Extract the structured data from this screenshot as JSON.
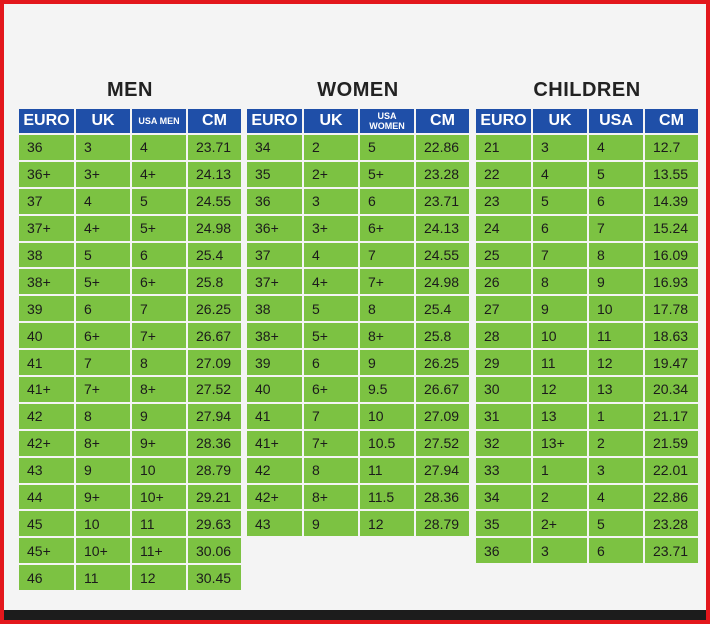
{
  "men": {
    "title": "MEN",
    "headers": [
      "EURO",
      "UK",
      "USA MEN",
      "CM"
    ],
    "rows": [
      [
        "36",
        "3",
        "4",
        "23.71"
      ],
      [
        "36+",
        "3+",
        "4+",
        "24.13"
      ],
      [
        "37",
        "4",
        "5",
        "24.55"
      ],
      [
        "37+",
        "4+",
        "5+",
        "24.98"
      ],
      [
        "38",
        "5",
        "6",
        "25.4"
      ],
      [
        "38+",
        "5+",
        "6+",
        "25.8"
      ],
      [
        "39",
        "6",
        "7",
        "26.25"
      ],
      [
        "40",
        "6+",
        "7+",
        "26.67"
      ],
      [
        "41",
        "7",
        "8",
        "27.09"
      ],
      [
        "41+",
        "7+",
        "8+",
        "27.52"
      ],
      [
        "42",
        "8",
        "9",
        "27.94"
      ],
      [
        "42+",
        "8+",
        "9+",
        "28.36"
      ],
      [
        "43",
        "9",
        "10",
        "28.79"
      ],
      [
        "44",
        "9+",
        "10+",
        "29.21"
      ],
      [
        "45",
        "10",
        "11",
        "29.63"
      ],
      [
        "45+",
        "10+",
        "11+",
        "30.06"
      ],
      [
        "46",
        "11",
        "12",
        "30.45"
      ]
    ]
  },
  "women": {
    "title": "WOMEN",
    "headers": [
      "EURO",
      "UK",
      "USA WOMEN",
      "CM"
    ],
    "rows": [
      [
        "34",
        "2",
        "5",
        "22.86"
      ],
      [
        "35",
        "2+",
        "5+",
        "23.28"
      ],
      [
        "36",
        "3",
        "6",
        "23.71"
      ],
      [
        "36+",
        "3+",
        "6+",
        "24.13"
      ],
      [
        "37",
        "4",
        "7",
        "24.55"
      ],
      [
        "37+",
        "4+",
        "7+",
        "24.98"
      ],
      [
        "38",
        "5",
        "8",
        "25.4"
      ],
      [
        "38+",
        "5+",
        "8+",
        "25.8"
      ],
      [
        "39",
        "6",
        "9",
        "26.25"
      ],
      [
        "40",
        "6+",
        "9.5",
        "26.67"
      ],
      [
        "41",
        "7",
        "10",
        "27.09"
      ],
      [
        "41+",
        "7+",
        "10.5",
        "27.52"
      ],
      [
        "42",
        "8",
        "11",
        "27.94"
      ],
      [
        "42+",
        "8+",
        "11.5",
        "28.36"
      ],
      [
        "43",
        "9",
        "12",
        "28.79"
      ]
    ]
  },
  "children": {
    "title": "CHILDREN",
    "headers": [
      "EURO",
      "UK",
      "USA",
      "CM"
    ],
    "rows": [
      [
        "21",
        "3",
        "4",
        "12.7"
      ],
      [
        "22",
        "4",
        "5",
        "13.55"
      ],
      [
        "23",
        "5",
        "6",
        "14.39"
      ],
      [
        "24",
        "6",
        "7",
        "15.24"
      ],
      [
        "25",
        "7",
        "8",
        "16.09"
      ],
      [
        "26",
        "8",
        "9",
        "16.93"
      ],
      [
        "27",
        "9",
        "10",
        "17.78"
      ],
      [
        "28",
        "10",
        "11",
        "18.63"
      ],
      [
        "29",
        "11",
        "12",
        "19.47"
      ],
      [
        "30",
        "12",
        "13",
        "20.34"
      ],
      [
        "31",
        "13",
        "1",
        "21.17"
      ],
      [
        "32",
        "13+",
        "2",
        "21.59"
      ],
      [
        "33",
        "1",
        "3",
        "22.01"
      ],
      [
        "34",
        "2",
        "4",
        "22.86"
      ],
      [
        "35",
        "2+",
        "5",
        "23.28"
      ],
      [
        "36",
        "3",
        "6",
        "23.71"
      ]
    ]
  },
  "colors": {
    "header_bg": "#1f4fa8",
    "cell_bg": "#7cc242",
    "frame_border": "#e3171c"
  }
}
